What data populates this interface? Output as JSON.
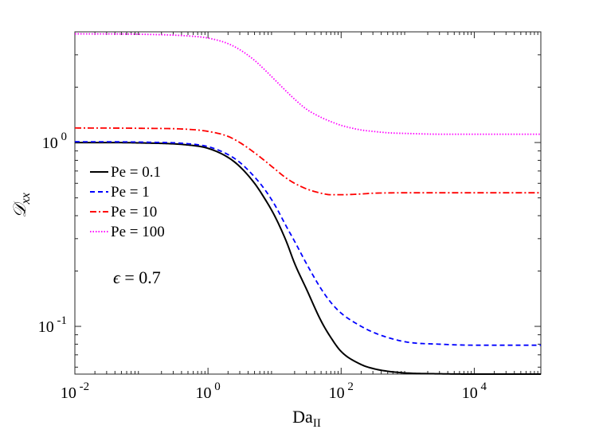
{
  "chart_data": {
    "type": "line",
    "xscale": "log",
    "yscale": "log",
    "xlim": [
      0.01,
      100000
    ],
    "ylim": [
      0.055,
      4.0
    ],
    "xlabel_main": "Da",
    "xlabel_sub": "II",
    "ylabel": "𝒟",
    "ylabel_sub": "xx",
    "xticks": [
      {
        "value": 0.01,
        "base": "10",
        "exp": "-2"
      },
      {
        "value": 1,
        "base": "10",
        "exp": "0"
      },
      {
        "value": 100,
        "base": "10",
        "exp": "2"
      },
      {
        "value": 10000,
        "base": "10",
        "exp": "4"
      }
    ],
    "yticks": [
      {
        "value": 0.1,
        "base": "10",
        "exp": "-1"
      },
      {
        "value": 1,
        "base": "10",
        "exp": "0"
      }
    ],
    "annotation": {
      "symbol": "ϵ",
      "text": " = 0.7"
    },
    "legend_position": "left-middle",
    "series": [
      {
        "name": "Pe = 0.1",
        "color": "#000000",
        "dash": "",
        "x": [
          0.01,
          0.1,
          0.5,
          1,
          2,
          3,
          5,
          7,
          10,
          15,
          20,
          30,
          50,
          70,
          100,
          200,
          300,
          500,
          1000,
          3000,
          10000,
          100000
        ],
        "y": [
          1.0,
          0.995,
          0.97,
          0.93,
          0.83,
          0.74,
          0.6,
          0.5,
          0.4,
          0.29,
          0.22,
          0.16,
          0.107,
          0.087,
          0.073,
          0.062,
          0.059,
          0.057,
          0.0557,
          0.0552,
          0.055,
          0.055
        ]
      },
      {
        "name": "Pe = 1",
        "color": "#0000ff",
        "dash": "6,4",
        "x": [
          0.01,
          0.1,
          0.5,
          1,
          2,
          3,
          5,
          7,
          10,
          15,
          20,
          30,
          50,
          70,
          100,
          200,
          300,
          500,
          1000,
          3000,
          10000,
          100000
        ],
        "y": [
          1.01,
          1.005,
          0.985,
          0.95,
          0.86,
          0.78,
          0.65,
          0.56,
          0.46,
          0.35,
          0.29,
          0.22,
          0.16,
          0.135,
          0.118,
          0.1,
          0.093,
          0.087,
          0.082,
          0.08,
          0.079,
          0.079
        ]
      },
      {
        "name": "Pe = 10",
        "color": "#ff0000",
        "dash": "8,3,2,3",
        "x": [
          0.01,
          0.1,
          0.5,
          1,
          2,
          3,
          5,
          7,
          10,
          15,
          20,
          30,
          50,
          70,
          100,
          200,
          300,
          500,
          1000,
          3000,
          10000,
          100000
        ],
        "y": [
          1.2,
          1.195,
          1.18,
          1.15,
          1.08,
          1.0,
          0.88,
          0.8,
          0.72,
          0.64,
          0.6,
          0.56,
          0.53,
          0.52,
          0.52,
          0.525,
          0.53,
          0.532,
          0.533,
          0.533,
          0.533,
          0.533
        ]
      },
      {
        "name": "Pe = 100",
        "color": "#ff00ff",
        "dash": "1.5,2",
        "x": [
          0.01,
          0.1,
          0.5,
          1,
          2,
          3,
          5,
          7,
          10,
          15,
          20,
          30,
          50,
          70,
          100,
          200,
          300,
          500,
          1000,
          3000,
          10000,
          100000
        ],
        "y": [
          3.9,
          3.88,
          3.8,
          3.7,
          3.45,
          3.2,
          2.8,
          2.5,
          2.2,
          1.9,
          1.72,
          1.52,
          1.37,
          1.3,
          1.24,
          1.17,
          1.15,
          1.13,
          1.12,
          1.11,
          1.11,
          1.11
        ]
      }
    ]
  }
}
